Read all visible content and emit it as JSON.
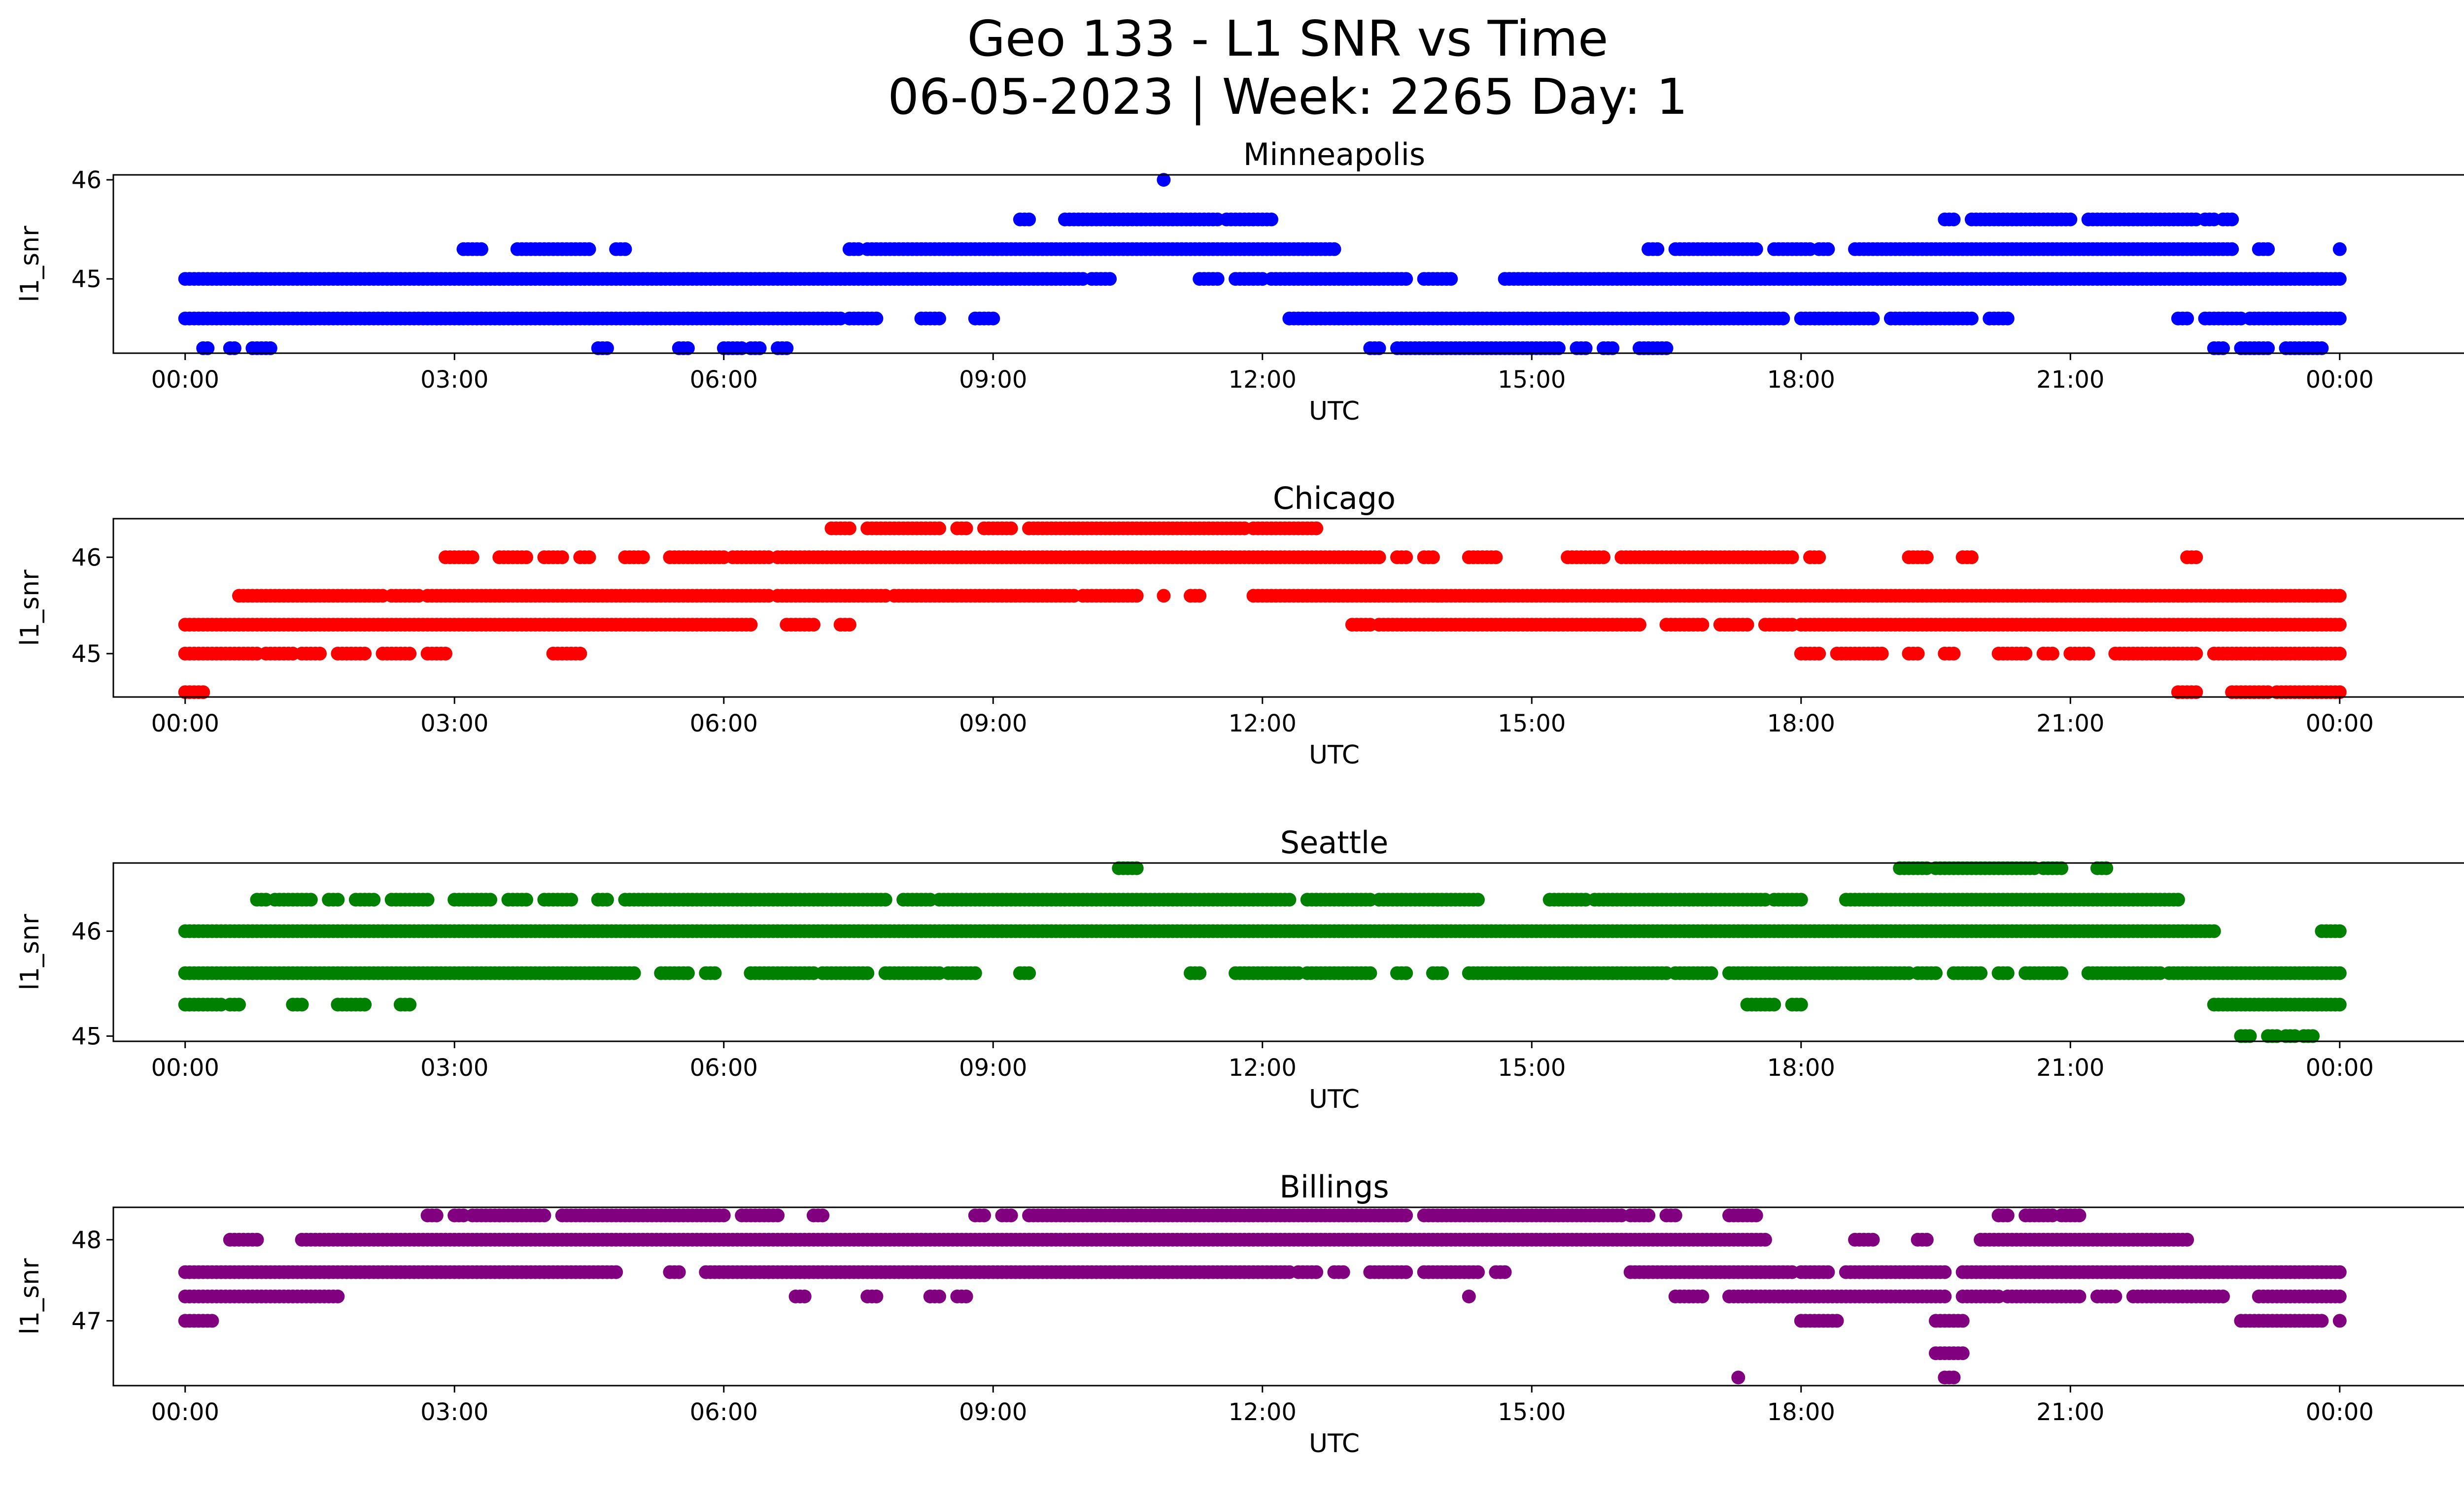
{
  "title": {
    "line1": "Geo 133 - L1 SNR vs Time",
    "line2": "06-05-2023 | Week: 2265 Day: 1"
  },
  "chart_data": [
    {
      "type": "scatter",
      "title": "Minneapolis",
      "xlabel": "UTC",
      "ylabel": "l1_snr",
      "color": "#0000ff",
      "x_ticks": [
        "00:00",
        "03:00",
        "06:00",
        "09:00",
        "12:00",
        "15:00",
        "18:00",
        "21:00",
        "00:00"
      ],
      "y_ticks": [
        45,
        46
      ],
      "ylim": [
        44.25,
        46.05
      ],
      "series": [
        {
          "y": 44.3,
          "segments": [
            [
              0.2,
              0.25
            ],
            [
              0.5,
              0.55
            ],
            [
              0.75,
              0.95
            ],
            [
              4.6,
              4.7
            ],
            [
              5.5,
              5.6
            ],
            [
              6.0,
              6.2
            ],
            [
              6.3,
              6.4
            ],
            [
              6.6,
              6.7
            ],
            [
              13.2,
              13.3
            ],
            [
              13.5,
              15.3
            ],
            [
              15.5,
              15.6
            ],
            [
              15.8,
              15.9
            ],
            [
              16.2,
              16.5
            ],
            [
              22.6,
              22.7
            ],
            [
              22.9,
              23.2
            ],
            [
              23.4,
              23.8
            ]
          ]
        },
        {
          "y": 44.6,
          "segments": [
            [
              0.0,
              7.3
            ],
            [
              7.4,
              7.7
            ],
            [
              8.2,
              8.4
            ],
            [
              8.8,
              9.0
            ],
            [
              12.3,
              17.8
            ],
            [
              18.0,
              18.8
            ],
            [
              19.0,
              19.9
            ],
            [
              20.1,
              20.3
            ],
            [
              22.2,
              22.3
            ],
            [
              22.5,
              22.9
            ],
            [
              23.0,
              24.0
            ]
          ]
        },
        {
          "y": 45.0,
          "segments": [
            [
              0.0,
              10.0
            ],
            [
              10.1,
              10.3
            ],
            [
              11.3,
              11.5
            ],
            [
              11.7,
              12.0
            ],
            [
              12.1,
              13.6
            ],
            [
              13.8,
              14.1
            ],
            [
              14.7,
              24.0
            ]
          ]
        },
        {
          "y": 45.3,
          "segments": [
            [
              3.1,
              3.3
            ],
            [
              3.7,
              4.5
            ],
            [
              4.8,
              4.9
            ],
            [
              7.4,
              7.5
            ],
            [
              7.6,
              12.8
            ],
            [
              16.3,
              16.4
            ],
            [
              16.6,
              17.5
            ],
            [
              17.7,
              18.1
            ],
            [
              18.2,
              18.3
            ],
            [
              18.6,
              22.8
            ],
            [
              23.1,
              23.2
            ],
            [
              24.0,
              24.0
            ]
          ]
        },
        {
          "y": 45.6,
          "segments": [
            [
              9.3,
              9.4
            ],
            [
              9.8,
              11.5
            ],
            [
              11.6,
              12.1
            ],
            [
              19.6,
              19.7
            ],
            [
              19.9,
              21.0
            ],
            [
              21.2,
              22.4
            ],
            [
              22.5,
              22.6
            ],
            [
              22.7,
              22.8
            ]
          ]
        },
        {
          "y": 46.0,
          "segments": [
            [
              10.9,
              10.9
            ]
          ]
        }
      ]
    },
    {
      "type": "scatter",
      "title": "Chicago",
      "xlabel": "UTC",
      "ylabel": "l1_snr",
      "color": "#ff0000",
      "x_ticks": [
        "00:00",
        "03:00",
        "06:00",
        "09:00",
        "12:00",
        "15:00",
        "18:00",
        "21:00",
        "00:00"
      ],
      "y_ticks": [
        45,
        46
      ],
      "ylim": [
        44.55,
        46.4
      ],
      "series": [
        {
          "y": 44.6,
          "segments": [
            [
              0.0,
              0.2
            ],
            [
              22.2,
              22.4
            ],
            [
              22.8,
              23.2
            ],
            [
              23.3,
              24.0
            ]
          ]
        },
        {
          "y": 45.0,
          "segments": [
            [
              0.0,
              0.8
            ],
            [
              0.9,
              1.2
            ],
            [
              1.3,
              1.5
            ],
            [
              1.7,
              2.0
            ],
            [
              2.2,
              2.5
            ],
            [
              2.7,
              2.9
            ],
            [
              4.1,
              4.4
            ],
            [
              18.0,
              18.2
            ],
            [
              18.4,
              18.9
            ],
            [
              19.2,
              19.3
            ],
            [
              19.6,
              19.7
            ],
            [
              20.2,
              20.5
            ],
            [
              20.7,
              20.8
            ],
            [
              21.0,
              21.2
            ],
            [
              21.5,
              22.4
            ],
            [
              22.6,
              24.0
            ]
          ]
        },
        {
          "y": 45.3,
          "segments": [
            [
              0.0,
              6.3
            ],
            [
              6.7,
              7.0
            ],
            [
              7.3,
              7.4
            ],
            [
              13.0,
              13.2
            ],
            [
              13.3,
              16.2
            ],
            [
              16.5,
              16.9
            ],
            [
              17.1,
              17.4
            ],
            [
              17.6,
              17.9
            ],
            [
              18.0,
              24.0
            ]
          ]
        },
        {
          "y": 45.6,
          "segments": [
            [
              0.6,
              2.2
            ],
            [
              2.3,
              2.6
            ],
            [
              2.7,
              6.5
            ],
            [
              6.6,
              7.8
            ],
            [
              7.9,
              9.9
            ],
            [
              10.0,
              10.6
            ],
            [
              10.9,
              10.9
            ],
            [
              11.2,
              11.3
            ],
            [
              11.9,
              24.0
            ]
          ]
        },
        {
          "y": 46.0,
          "segments": [
            [
              2.9,
              3.2
            ],
            [
              3.5,
              3.8
            ],
            [
              4.0,
              4.2
            ],
            [
              4.4,
              4.5
            ],
            [
              4.9,
              5.1
            ],
            [
              5.4,
              6.0
            ],
            [
              6.1,
              6.5
            ],
            [
              6.6,
              13.3
            ],
            [
              13.5,
              13.6
            ],
            [
              13.8,
              13.9
            ],
            [
              14.3,
              14.6
            ],
            [
              15.4,
              15.8
            ],
            [
              16.0,
              17.9
            ],
            [
              18.1,
              18.2
            ],
            [
              19.2,
              19.4
            ],
            [
              19.8,
              19.9
            ],
            [
              22.3,
              22.4
            ]
          ]
        },
        {
          "y": 46.3,
          "segments": [
            [
              7.2,
              7.4
            ],
            [
              7.6,
              8.4
            ],
            [
              8.6,
              8.7
            ],
            [
              8.9,
              9.2
            ],
            [
              9.4,
              11.8
            ],
            [
              11.9,
              12.6
            ]
          ]
        }
      ]
    },
    {
      "type": "scatter",
      "title": "Seattle",
      "xlabel": "UTC",
      "ylabel": "l1_snr",
      "color": "#008000",
      "x_ticks": [
        "00:00",
        "03:00",
        "06:00",
        "09:00",
        "12:00",
        "15:00",
        "18:00",
        "21:00",
        "00:00"
      ],
      "y_ticks": [
        45,
        46
      ],
      "ylim": [
        44.95,
        46.65
      ],
      "series": [
        {
          "y": 45.0,
          "segments": [
            [
              22.9,
              23.0
            ],
            [
              23.2,
              23.3
            ],
            [
              23.4,
              23.5
            ],
            [
              23.6,
              23.7
            ]
          ]
        },
        {
          "y": 45.3,
          "segments": [
            [
              0.0,
              0.4
            ],
            [
              0.5,
              0.6
            ],
            [
              1.2,
              1.3
            ],
            [
              1.7,
              2.0
            ],
            [
              2.4,
              2.5
            ],
            [
              17.4,
              17.7
            ],
            [
              17.9,
              18.0
            ],
            [
              22.6,
              24.0
            ]
          ]
        },
        {
          "y": 45.6,
          "segments": [
            [
              0.0,
              5.0
            ],
            [
              5.3,
              5.6
            ],
            [
              5.8,
              5.9
            ],
            [
              6.3,
              7.0
            ],
            [
              7.1,
              7.6
            ],
            [
              7.8,
              8.4
            ],
            [
              8.5,
              8.8
            ],
            [
              9.3,
              9.4
            ],
            [
              11.2,
              11.3
            ],
            [
              11.7,
              12.4
            ],
            [
              12.5,
              13.2
            ],
            [
              13.5,
              13.6
            ],
            [
              13.9,
              14.0
            ],
            [
              14.3,
              16.5
            ],
            [
              16.6,
              17.0
            ],
            [
              17.2,
              19.2
            ],
            [
              19.3,
              19.5
            ],
            [
              19.7,
              20.0
            ],
            [
              20.2,
              20.3
            ],
            [
              20.5,
              20.9
            ],
            [
              21.2,
              22.0
            ],
            [
              22.1,
              24.0
            ]
          ]
        },
        {
          "y": 46.0,
          "segments": [
            [
              0.0,
              22.6
            ],
            [
              23.8,
              24.0
            ]
          ]
        },
        {
          "y": 46.3,
          "segments": [
            [
              0.8,
              0.9
            ],
            [
              1.0,
              1.4
            ],
            [
              1.6,
              1.7
            ],
            [
              1.9,
              2.1
            ],
            [
              2.3,
              2.7
            ],
            [
              3.0,
              3.4
            ],
            [
              3.6,
              3.8
            ],
            [
              4.0,
              4.3
            ],
            [
              4.6,
              4.7
            ],
            [
              4.9,
              7.8
            ],
            [
              8.0,
              8.3
            ],
            [
              8.4,
              12.3
            ],
            [
              12.5,
              13.2
            ],
            [
              13.3,
              14.4
            ],
            [
              15.2,
              15.6
            ],
            [
              15.7,
              17.6
            ],
            [
              17.7,
              18.0
            ],
            [
              18.5,
              22.2
            ]
          ]
        },
        {
          "y": 46.6,
          "segments": [
            [
              10.4,
              10.6
            ],
            [
              19.1,
              19.4
            ],
            [
              19.5,
              20.6
            ],
            [
              20.7,
              20.9
            ],
            [
              21.3,
              21.4
            ]
          ]
        }
      ]
    },
    {
      "type": "scatter",
      "title": "Billings",
      "xlabel": "UTC",
      "ylabel": "l1_snr",
      "color": "#800080",
      "x_ticks": [
        "00:00",
        "03:00",
        "06:00",
        "09:00",
        "12:00",
        "15:00",
        "18:00",
        "21:00",
        "00:00"
      ],
      "y_ticks": [
        47,
        48
      ],
      "ylim": [
        46.2,
        48.4
      ],
      "series": [
        {
          "y": 46.3,
          "segments": [
            [
              17.3,
              17.3
            ],
            [
              19.6,
              19.7
            ]
          ]
        },
        {
          "y": 46.6,
          "segments": [
            [
              19.5,
              19.8
            ]
          ]
        },
        {
          "y": 47.0,
          "segments": [
            [
              0.0,
              0.3
            ],
            [
              18.0,
              18.4
            ],
            [
              19.5,
              19.8
            ],
            [
              22.9,
              23.8
            ],
            [
              24.0,
              24.0
            ]
          ]
        },
        {
          "y": 47.3,
          "segments": [
            [
              0.0,
              1.7
            ],
            [
              6.8,
              6.9
            ],
            [
              7.6,
              7.7
            ],
            [
              8.3,
              8.4
            ],
            [
              8.6,
              8.7
            ],
            [
              14.3,
              14.3
            ],
            [
              16.6,
              16.9
            ],
            [
              17.2,
              19.6
            ],
            [
              19.8,
              20.2
            ],
            [
              20.3,
              21.1
            ],
            [
              21.3,
              21.5
            ],
            [
              21.7,
              22.7
            ],
            [
              23.1,
              24.0
            ]
          ]
        },
        {
          "y": 47.6,
          "segments": [
            [
              0.0,
              4.8
            ],
            [
              5.4,
              5.5
            ],
            [
              5.8,
              12.3
            ],
            [
              12.4,
              12.6
            ],
            [
              12.8,
              12.9
            ],
            [
              13.2,
              13.6
            ],
            [
              13.8,
              14.4
            ],
            [
              14.6,
              14.7
            ],
            [
              16.1,
              17.9
            ],
            [
              18.0,
              18.3
            ],
            [
              18.5,
              19.6
            ],
            [
              19.8,
              24.0
            ]
          ]
        },
        {
          "y": 48.0,
          "segments": [
            [
              0.5,
              0.8
            ],
            [
              1.3,
              17.6
            ],
            [
              18.6,
              18.8
            ],
            [
              19.3,
              19.4
            ],
            [
              20.0,
              22.3
            ]
          ]
        },
        {
          "y": 48.3,
          "segments": [
            [
              2.7,
              2.8
            ],
            [
              3.0,
              3.1
            ],
            [
              3.2,
              4.0
            ],
            [
              4.2,
              6.0
            ],
            [
              6.2,
              6.6
            ],
            [
              7.0,
              7.1
            ],
            [
              8.8,
              8.9
            ],
            [
              9.1,
              9.2
            ],
            [
              9.4,
              13.6
            ],
            [
              13.8,
              16.0
            ],
            [
              16.1,
              16.3
            ],
            [
              16.5,
              16.6
            ],
            [
              17.2,
              17.5
            ],
            [
              20.2,
              20.3
            ],
            [
              20.5,
              20.8
            ],
            [
              20.9,
              21.1
            ]
          ]
        }
      ]
    }
  ]
}
